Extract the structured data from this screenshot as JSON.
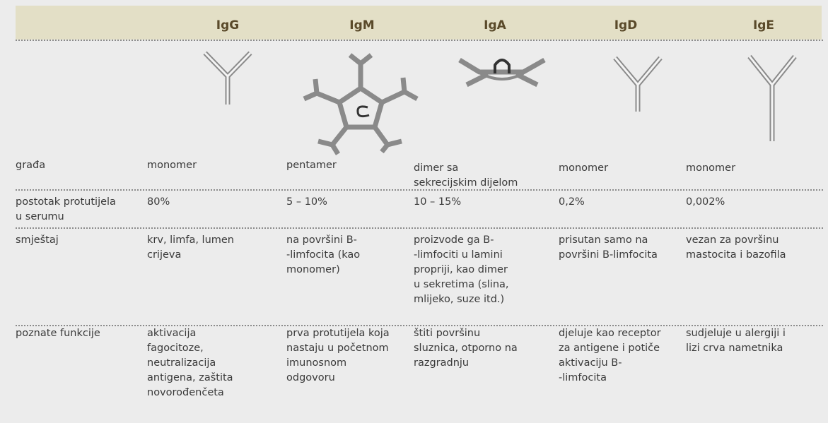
{
  "table": {
    "columns": [
      "IgG",
      "IgM",
      "IgA",
      "IgD",
      "IgE"
    ],
    "rows": [
      {
        "label": [
          "građa"
        ],
        "cells": [
          [
            "monomer"
          ],
          [
            "pentamer"
          ],
          [
            "dimer sa",
            "sekrecijskim dijelom"
          ],
          [
            "monomer"
          ],
          [
            "monomer"
          ]
        ]
      },
      {
        "label": [
          "postotak protutijela",
          "u serumu"
        ],
        "cells": [
          [
            "80%"
          ],
          [
            "5 – 10%"
          ],
          [
            "10 – 15%"
          ],
          [
            "0,2%"
          ],
          [
            "0,002%"
          ]
        ]
      },
      {
        "label": [
          "smještaj"
        ],
        "cells": [
          [
            "krv, limfa, lumen",
            "crijeva"
          ],
          [
            "na površini B-",
            "-limfocita (kao",
            "monomer)"
          ],
          [
            "proizvode ga B-",
            "-limfociti u lamini",
            "propriji, kao dimer",
            "u sekretima (slina,",
            "mlijeko, suze itd.)"
          ],
          [
            "prisutan samo na",
            "površini B-limfocita"
          ],
          [
            "vezan za površinu",
            "mastocita i bazofila"
          ]
        ]
      },
      {
        "label": [
          "poznate funkcije"
        ],
        "cells": [
          [
            "aktivacija",
            "fagocitoze,",
            "neutralizacija",
            "antigena, zaštita",
            "novorođenčeta"
          ],
          [
            "prva protutijela koja",
            "nastaju u početnom",
            "imunosnom",
            "odgovoru"
          ],
          [
            "štiti površinu",
            "sluznica, otporno na",
            "razgradnju"
          ],
          [
            "djeluje kao receptor",
            "za antigene i potiče",
            "aktivaciju B-",
            "-limfocita"
          ],
          [
            "sudjeluje u alergiji i",
            "lizi crva nametnika"
          ]
        ]
      }
    ]
  }
}
